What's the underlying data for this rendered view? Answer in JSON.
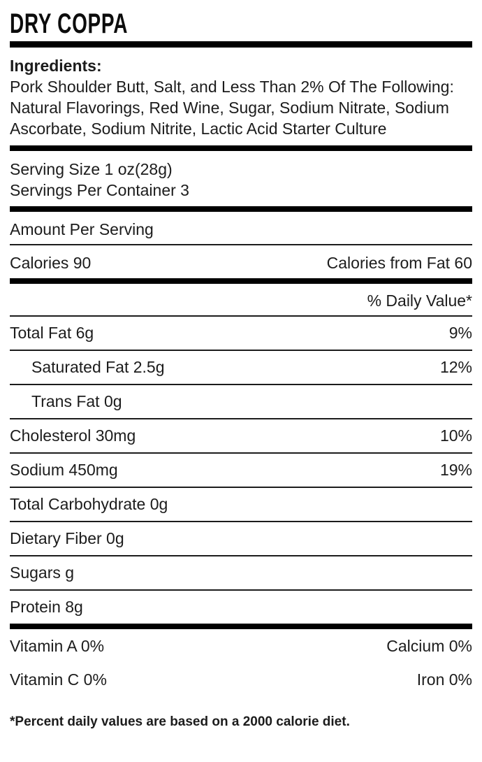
{
  "title": "DRY COPPA",
  "ingredients": {
    "label": "Ingredients:",
    "text": "Pork Shoulder Butt, Salt, and Less Than 2% Of The Following: Natural Flavorings, Red Wine, Sugar, Sodium Nitrate, Sodium Ascorbate, Sodium Nitrite, Lactic Acid Starter Culture"
  },
  "serving": {
    "size": "Serving Size 1 oz(28g)",
    "per_container": "Servings Per Container 3"
  },
  "amount_per_serving": "Amount Per Serving",
  "calories": {
    "left": "Calories 90",
    "right": "Calories from Fat 60"
  },
  "daily_value_header": "% Daily Value*",
  "nutrient_rows": [
    {
      "label": "Total Fat 6g",
      "value": "9%"
    },
    {
      "label": "Saturated Fat 2.5g",
      "value": "12%"
    },
    {
      "label": "Trans Fat 0g",
      "value": ""
    },
    {
      "label": "Cholesterol 30mg",
      "value": "10%"
    },
    {
      "label": "Sodium 450mg",
      "value": "19%"
    },
    {
      "label": "Total Carbohydrate 0g",
      "value": ""
    },
    {
      "label": "Dietary Fiber 0g",
      "value": ""
    },
    {
      "label": "Sugars g",
      "value": ""
    },
    {
      "label": "Protein 8g",
      "value": ""
    }
  ],
  "vitamins": [
    {
      "left": "Vitamin A 0%",
      "right": "Calcium 0%"
    },
    {
      "left": "Vitamin C 0%",
      "right": "Iron 0%"
    }
  ],
  "footnote": "*Percent daily values are based on a 2000 calorie diet.",
  "colors": {
    "background": "#ffffff",
    "text": "#1c1c1c",
    "divider": "#000000"
  }
}
